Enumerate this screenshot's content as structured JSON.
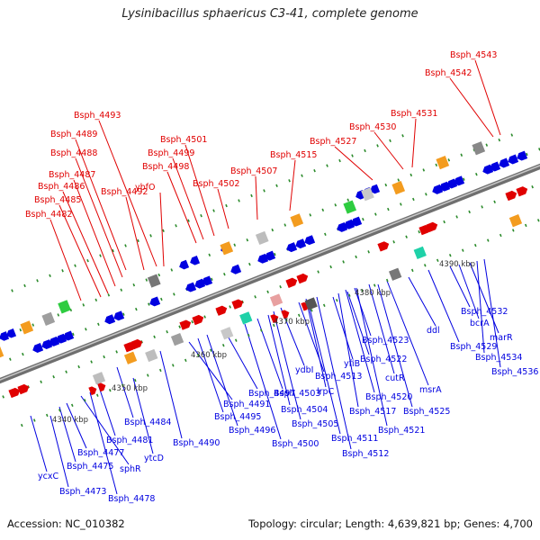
{
  "title": "Lysinibacillus sphaericus C3-41, complete genome",
  "footer": {
    "accession": "Accession: NC_010382",
    "summary": "Topology: circular; Length: 4,639,821 bp; Genes: 4,700"
  },
  "colors": {
    "forward": "#e00000",
    "reverse": "#0000e0",
    "backbone": "#8c8c8c",
    "tick_dot": "#2a8a2a"
  },
  "ticks": [
    "4340 kbp",
    "4350 kbp",
    "4360 kbp",
    "4370 kbp",
    "4380 kbp",
    "4390 kbp"
  ],
  "forward_labels": [
    "Bsph_4543",
    "Bsph_4542",
    "Bsph_4531",
    "Bsph_4530",
    "Bsph_4527",
    "Bsph_4515",
    "Bsph_4507",
    "Bsph_4502",
    "Bsph_4501",
    "Bsph_4499",
    "Bsph_4498",
    "Bsph_4493",
    "Bsph_4492",
    "Bsph_4489",
    "Bsph_4488",
    "Bsph_4487",
    "Bsph_4486",
    "Bsph_4485",
    "Bsph_4482",
    "ybfO"
  ],
  "reverse_labels": [
    "ycxC",
    "Bsph_4473",
    "Bsph_4475",
    "Bsph_4477",
    "sphR",
    "Bsph_4478",
    "Bsph_4481",
    "ytcD",
    "Bsph_4484",
    "Bsph_4490",
    "Bsph_4491",
    "Bsph_4495",
    "Bsph_4496",
    "Bsph_4497",
    "Bsph_4500",
    "Bsph_4503",
    "Bsph_4504",
    "Bsph_4505",
    "ydbI",
    "Bsph_4511",
    "Bsph_4512",
    "Bsph_4513",
    "lrpC",
    "yfiB",
    "Bsph_4517",
    "Bsph_4520",
    "Bsph_4521",
    "Bsph_4522",
    "Bsph_4523",
    "cutR",
    "msrA",
    "Bsph_4525",
    "ddl",
    "Bsph_4529",
    "Bsph_4532",
    "bcrA",
    "marR",
    "Bsph_4534",
    "Bsph_4536"
  ]
}
